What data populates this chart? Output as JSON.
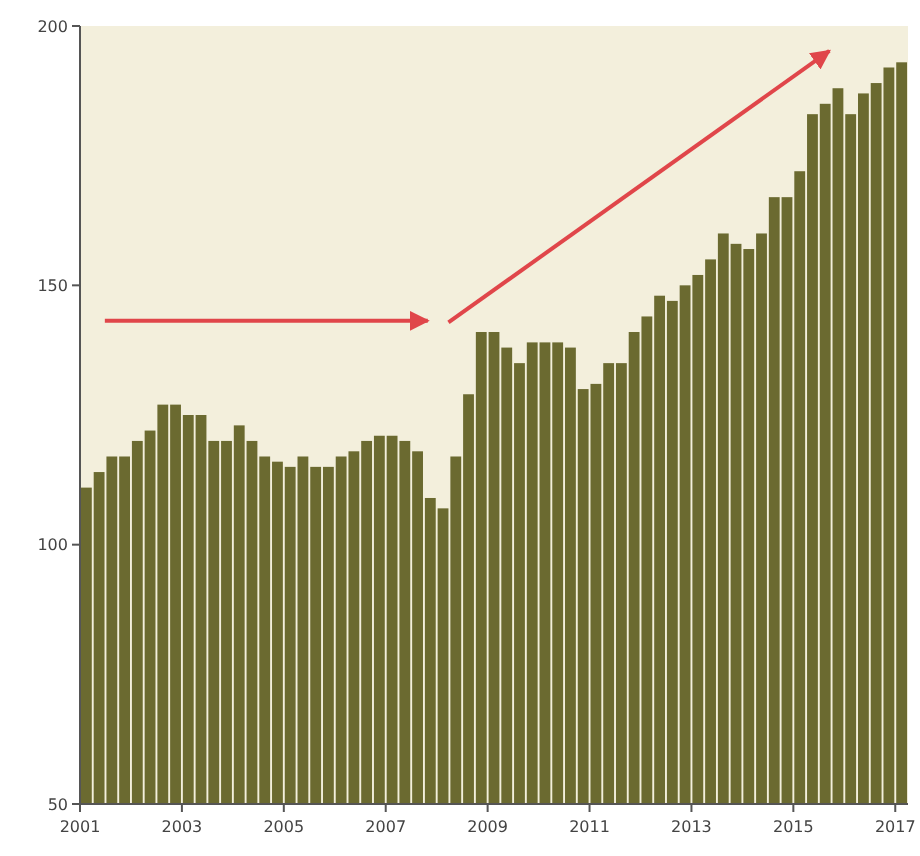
{
  "chart_data": {
    "type": "bar",
    "color": "#6b6a30",
    "x": [
      2001.125,
      2001.375,
      2001.625,
      2001.875,
      2002.125,
      2002.375,
      2002.625,
      2002.875,
      2003.125,
      2003.375,
      2003.625,
      2003.875,
      2004.125,
      2004.375,
      2004.625,
      2004.875,
      2005.125,
      2005.375,
      2005.625,
      2005.875,
      2006.125,
      2006.375,
      2006.625,
      2006.875,
      2007.125,
      2007.375,
      2007.625,
      2007.875,
      2008.125,
      2008.375,
      2008.625,
      2008.875,
      2009.125,
      2009.375,
      2009.625,
      2009.875,
      2010.125,
      2010.375,
      2010.625,
      2010.875,
      2011.125,
      2011.375,
      2011.625,
      2011.875,
      2012.125,
      2012.375,
      2012.625,
      2012.875,
      2013.125,
      2013.375,
      2013.625,
      2013.875,
      2014.125,
      2014.375,
      2014.625,
      2014.875,
      2015.125,
      2015.375,
      2015.625,
      2015.875,
      2016.125,
      2016.375,
      2016.625,
      2016.875,
      2017.125
    ],
    "values": [
      111,
      114,
      117,
      117,
      120,
      122,
      127,
      127,
      125,
      125,
      120,
      120,
      123,
      120,
      117,
      116,
      115,
      117,
      115,
      115,
      117,
      118,
      120,
      121,
      121,
      120,
      118,
      109,
      107,
      117,
      129,
      141,
      141,
      138,
      135,
      139,
      139,
      139,
      138,
      130,
      131,
      135,
      135,
      141,
      144,
      148,
      147,
      150,
      152,
      155,
      160,
      158,
      157,
      160,
      167,
      167,
      172,
      183,
      185,
      188,
      183,
      187,
      189,
      192,
      193
    ],
    "xlim": [
      2001,
      2017.25
    ],
    "ylim": [
      50,
      200
    ],
    "xticks": [
      2001,
      2003,
      2005,
      2007,
      2009,
      2011,
      2013,
      2015,
      2017
    ],
    "yticks": [
      50,
      100,
      150,
      200
    ]
  }
}
